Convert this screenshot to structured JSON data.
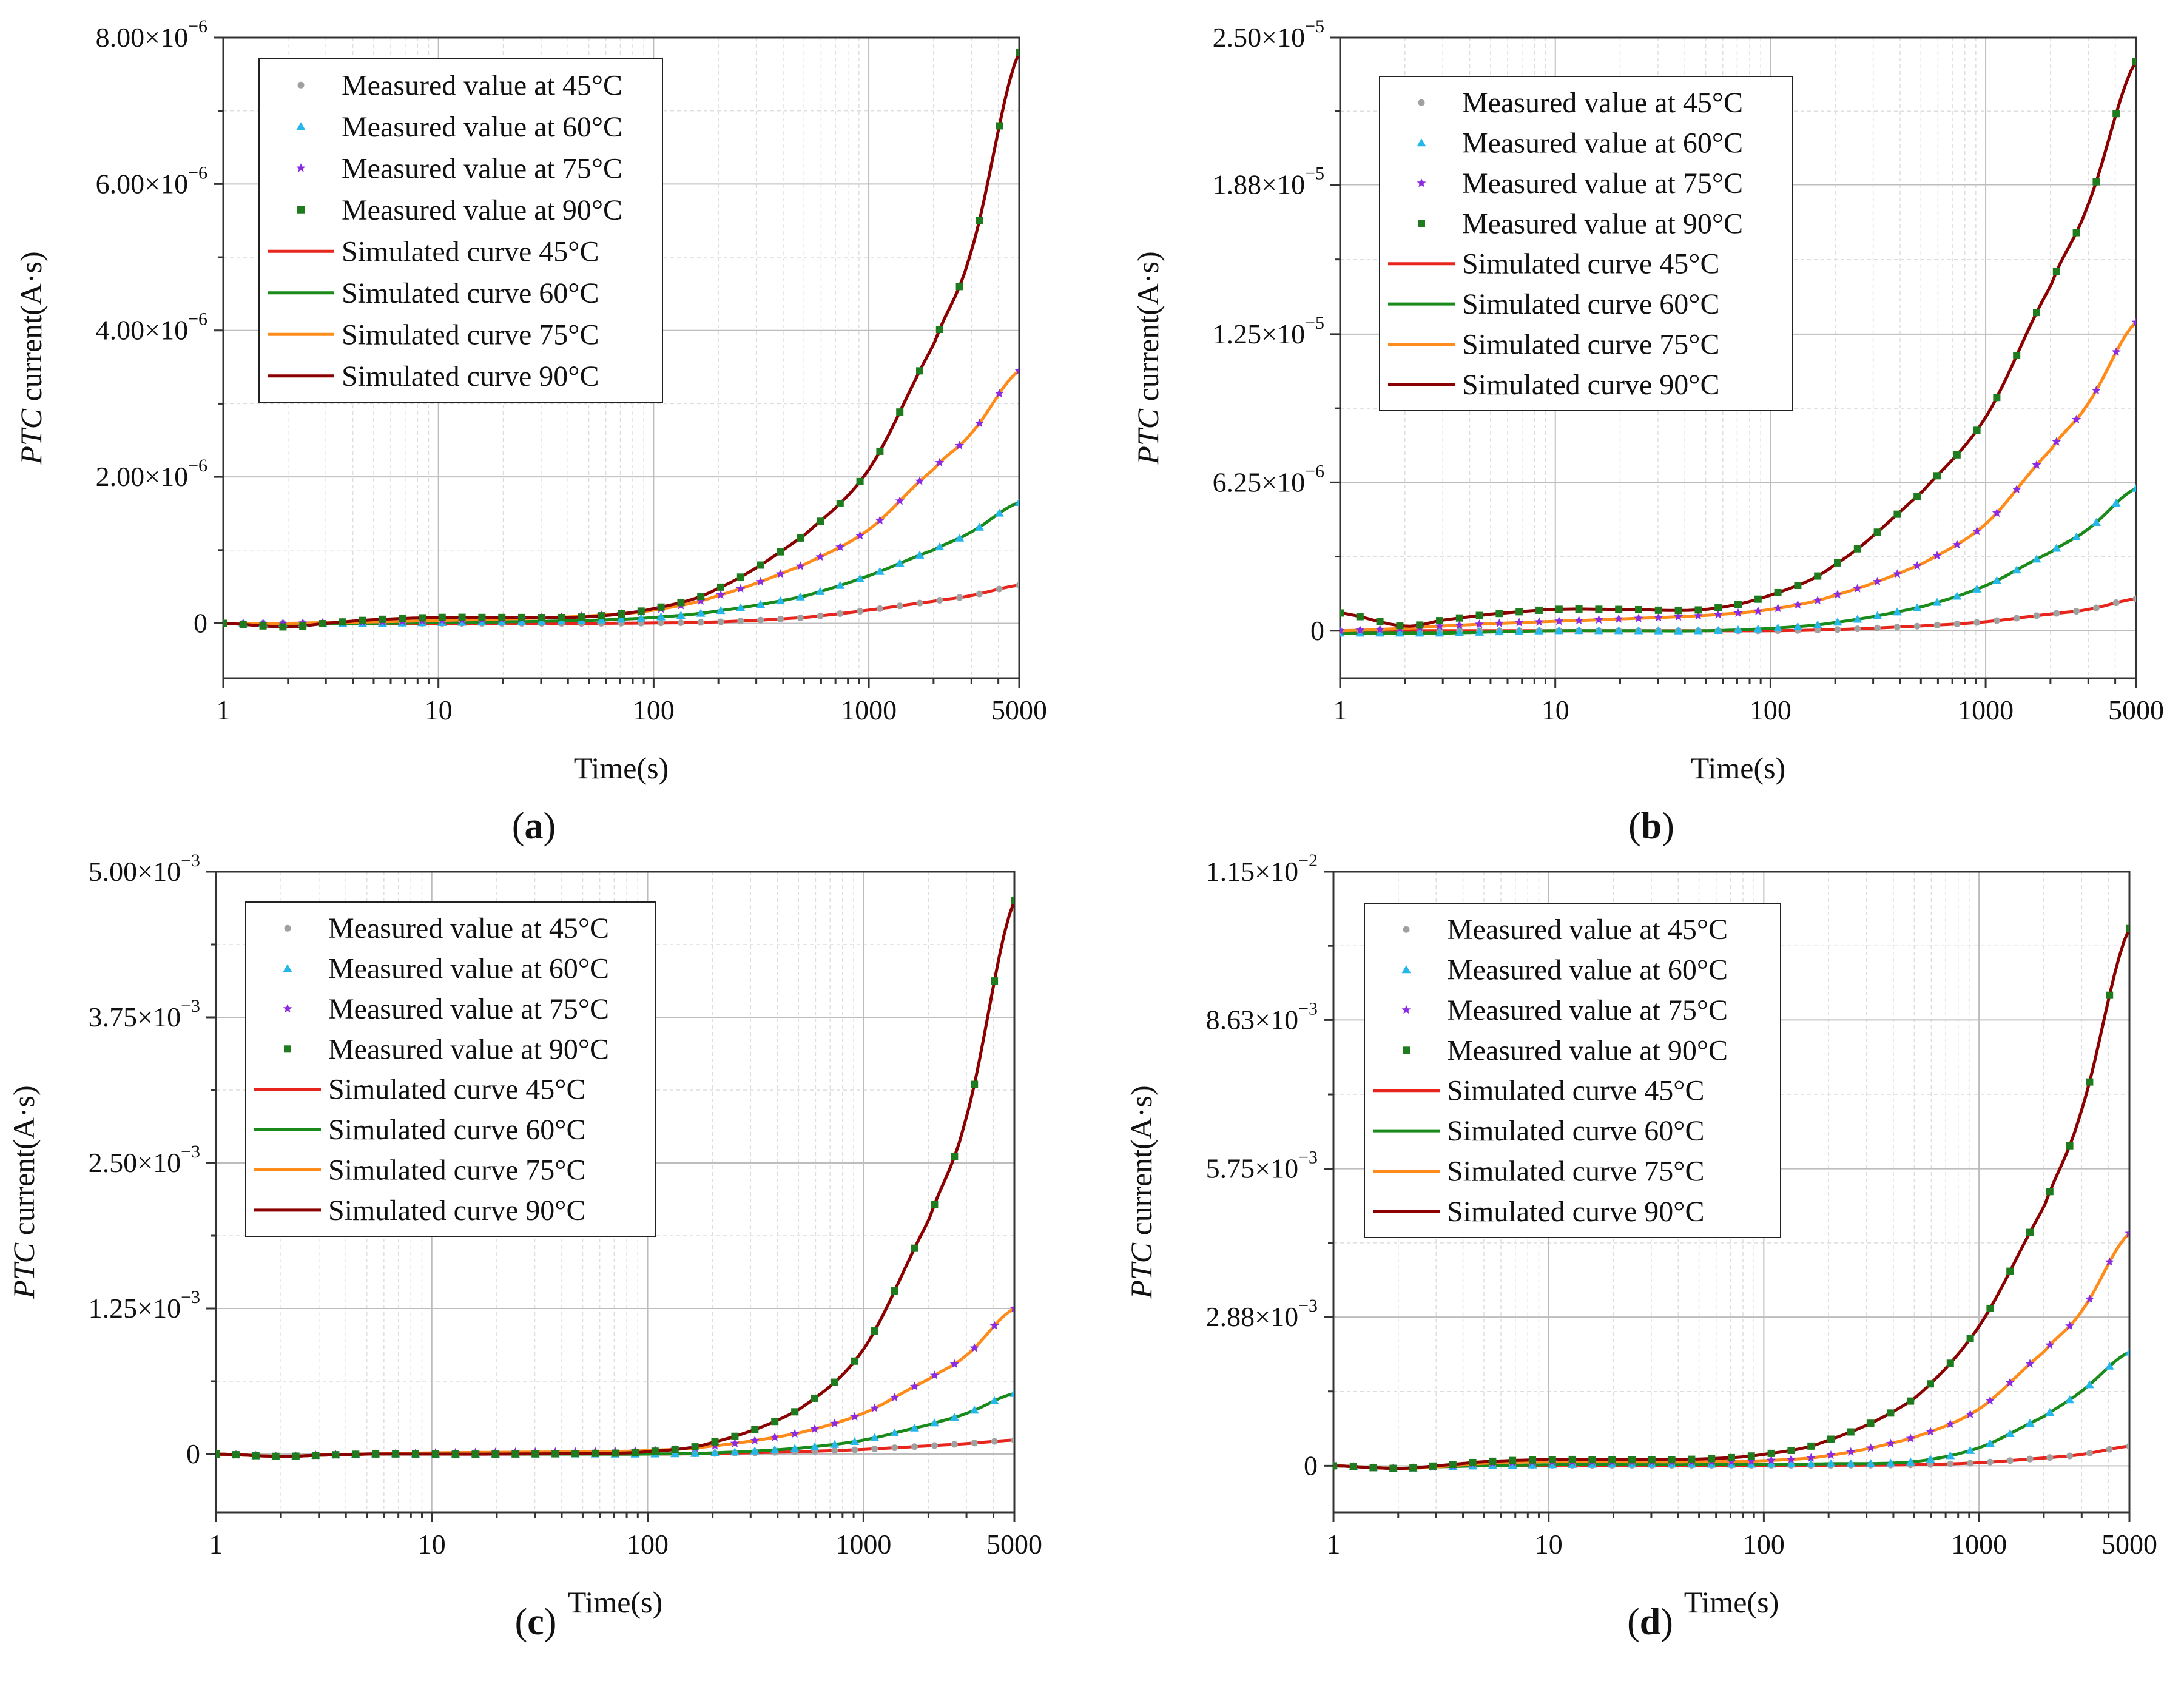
{
  "chart_data": [
    {
      "panel_label": "a",
      "type": "line",
      "xscale": "log",
      "xlim": [
        1,
        5000
      ],
      "ylim": [
        -7.5e-07,
        8e-06
      ],
      "xticks": [
        "1",
        "10",
        "100",
        "1000",
        "5000"
      ],
      "yticks": [
        {
          "value": 0,
          "mant": "0",
          "exp": ""
        },
        {
          "value": 2e-06,
          "mant": "2.00×10",
          "exp": "−6"
        },
        {
          "value": 4e-06,
          "mant": "4.00×10",
          "exp": "−6"
        },
        {
          "value": 6e-06,
          "mant": "6.00×10",
          "exp": "−6"
        },
        {
          "value": 8e-06,
          "mant": "8.00×10",
          "exp": "−6"
        }
      ],
      "xlabel": "Time(s)",
      "ylabel_italic": "PTC",
      "ylabel_rest": " current(A·s)",
      "grid": true,
      "legend_position": "top-left",
      "x": [
        1,
        2,
        3,
        5,
        10,
        20,
        50,
        100,
        200,
        500,
        1000,
        2000,
        3000,
        5000
      ],
      "series": [
        {
          "name": "45°C",
          "values": [
            0,
            0,
            0,
            0,
            0,
            0,
            0,
            5e-09,
            2e-08,
            8e-08,
            1.8e-07,
            3e-07,
            3.8e-07,
            5.2e-07
          ]
        },
        {
          "name": "60°C",
          "values": [
            0,
            0,
            0,
            0,
            1e-08,
            2e-08,
            4e-08,
            8e-08,
            1.7e-07,
            3.7e-07,
            6.5e-07,
            1e-06,
            1.25e-06,
            1.65e-06
          ]
        },
        {
          "name": "75°C",
          "values": [
            0,
            0,
            1e-08,
            2e-08,
            4e-08,
            6e-08,
            1e-07,
            1.8e-07,
            3.8e-07,
            8e-07,
            1.28e-06,
            2.1e-06,
            2.6e-06,
            3.45e-06
          ]
        },
        {
          "name": "90°C",
          "values": [
            0,
            -5e-08,
            0,
            5e-08,
            8e-08,
            8e-08,
            9e-08,
            2e-07,
            4.8e-07,
            1.2e-06,
            2.1e-06,
            3.8e-06,
            5.1e-06,
            7.8e-06
          ]
        }
      ]
    },
    {
      "panel_label": "b",
      "type": "line",
      "xscale": "log",
      "xlim": [
        1,
        5000
      ],
      "ylim": [
        -2e-06,
        2.5e-05
      ],
      "xticks": [
        "1",
        "10",
        "100",
        "1000",
        "5000"
      ],
      "yticks": [
        {
          "value": 0,
          "mant": "0",
          "exp": ""
        },
        {
          "value": 6.25e-06,
          "mant": "6.25×10",
          "exp": "−6"
        },
        {
          "value": 1.25e-05,
          "mant": "1.25×10",
          "exp": "−5"
        },
        {
          "value": 1.88e-05,
          "mant": "1.88×10",
          "exp": "−5"
        },
        {
          "value": 2.5e-05,
          "mant": "2.50×10",
          "exp": "−5"
        }
      ],
      "xlabel": "Time(s)",
      "ylabel_italic": "PTC",
      "ylabel_rest": " current(A·s)",
      "grid": true,
      "legend_position": "top-left",
      "x": [
        1,
        2,
        3,
        5,
        10,
        20,
        50,
        100,
        200,
        500,
        1000,
        2000,
        3000,
        5000
      ],
      "series": [
        {
          "name": "45°C",
          "values": [
            0,
            0,
            0,
            0,
            0,
            0,
            0,
            0,
            5e-08,
            2e-07,
            3.8e-07,
            7e-07,
            9e-07,
            1.35e-06
          ]
        },
        {
          "name": "60°C",
          "values": [
            -1e-07,
            -1e-07,
            -1e-07,
            -5e-08,
            0,
            0,
            0,
            1e-07,
            3.5e-07,
            1e-06,
            1.9e-06,
            3.3e-06,
            4.3e-06,
            6e-06
          ]
        },
        {
          "name": "75°C",
          "values": [
            0,
            1e-07,
            2e-07,
            3e-07,
            4e-07,
            5e-07,
            6.5e-07,
            9e-07,
            1.5e-06,
            2.8e-06,
            4.5e-06,
            7.6e-06,
            9.6e-06,
            1.3e-05
          ]
        },
        {
          "name": "90°C",
          "values": [
            7.5e-07,
            2e-07,
            4.5e-07,
            7e-07,
            9e-07,
            9e-07,
            9e-07,
            1.5e-06,
            2.8e-06,
            5.8e-06,
            9e-06,
            1.45e-05,
            1.8e-05,
            2.4e-05
          ]
        }
      ]
    },
    {
      "panel_label": "c",
      "type": "line",
      "xscale": "log",
      "xlim": [
        1,
        5000
      ],
      "ylim": [
        -0.0005,
        0.005
      ],
      "xticks": [
        "1",
        "10",
        "100",
        "1000",
        "5000"
      ],
      "yticks": [
        {
          "value": 0,
          "mant": "0",
          "exp": ""
        },
        {
          "value": 0.00125,
          "mant": "1.25×10",
          "exp": "−3"
        },
        {
          "value": 0.0025,
          "mant": "2.50×10",
          "exp": "−3"
        },
        {
          "value": 0.00375,
          "mant": "3.75×10",
          "exp": "−3"
        },
        {
          "value": 0.005,
          "mant": "5.00×10",
          "exp": "−3"
        }
      ],
      "xlabel": "Time(s)",
      "ylabel_italic": "PTC",
      "ylabel_rest": " current(A·s)",
      "grid": true,
      "legend_position": "top-left",
      "x": [
        1,
        2,
        3,
        5,
        10,
        20,
        50,
        100,
        200,
        500,
        1000,
        2000,
        3000,
        5000
      ],
      "series": [
        {
          "name": "45°C",
          "values": [
            0,
            -2e-05,
            -1e-05,
            0,
            0,
            0,
            0,
            0,
            5e-06,
            2e-05,
            4e-05,
            7e-05,
            9e-05,
            0.00012
          ]
        },
        {
          "name": "60°C",
          "values": [
            0,
            -2e-05,
            -1e-05,
            0,
            0,
            0,
            0,
            0,
            1e-05,
            5e-05,
            0.00012,
            0.00025,
            0.00035,
            0.00052
          ]
        },
        {
          "name": "75°C",
          "values": [
            0,
            -2e-05,
            -1e-05,
            0,
            1e-05,
            1.5e-05,
            2e-05,
            3e-05,
            7e-05,
            0.00018,
            0.00035,
            0.00064,
            0.00085,
            0.00125
          ]
        },
        {
          "name": "90°C",
          "values": [
            0,
            -2e-05,
            -1e-05,
            0,
            0,
            0,
            5e-06,
            2e-05,
            0.0001,
            0.00038,
            0.0009,
            0.002,
            0.0029,
            0.00475
          ]
        }
      ]
    },
    {
      "panel_label": "d",
      "type": "line",
      "xscale": "log",
      "xlim": [
        1,
        5000
      ],
      "ylim": [
        -0.0009,
        0.0115
      ],
      "xticks": [
        "1",
        "10",
        "100",
        "1000",
        "5000"
      ],
      "yticks": [
        {
          "value": 0,
          "mant": "0",
          "exp": ""
        },
        {
          "value": 0.00288,
          "mant": "2.88×10",
          "exp": "−3"
        },
        {
          "value": 0.00575,
          "mant": "5.75×10",
          "exp": "−3"
        },
        {
          "value": 0.00863,
          "mant": "8.63×10",
          "exp": "−3"
        },
        {
          "value": 0.0115,
          "mant": "1.15×10",
          "exp": "−2"
        }
      ],
      "xlabel": "Time(s)",
      "ylabel_italic": "PTC",
      "ylabel_rest": " current(A·s)",
      "grid": true,
      "legend_position": "top-left",
      "x": [
        1,
        2,
        3,
        5,
        10,
        20,
        50,
        100,
        200,
        500,
        1000,
        2000,
        3000,
        5000
      ],
      "series": [
        {
          "name": "45°C",
          "values": [
            0,
            -5e-05,
            -2e-05,
            0,
            1e-05,
            1e-05,
            1e-05,
            1e-05,
            1e-05,
            2e-05,
            6e-05,
            0.00015,
            0.00022,
            0.00038
          ]
        },
        {
          "name": "60°C",
          "values": [
            0,
            -5e-05,
            -2e-05,
            0,
            2e-05,
            3e-05,
            3e-05,
            3e-05,
            4e-05,
            8e-05,
            0.00035,
            0.00095,
            0.00145,
            0.0022
          ]
        },
        {
          "name": "75°C",
          "values": [
            0,
            -5e-05,
            -2e-05,
            5e-05,
            8e-05,
            8e-05,
            8e-05,
            0.0001,
            0.0002,
            0.00055,
            0.0011,
            0.0022,
            0.003,
            0.0045
          ]
        },
        {
          "name": "90°C",
          "values": [
            0,
            -5e-05,
            0,
            8e-05,
            0.00012,
            0.00012,
            0.00013,
            0.00022,
            0.0005,
            0.0013,
            0.0027,
            0.005,
            0.0069,
            0.0104
          ]
        }
      ]
    }
  ],
  "legend": {
    "measured": [
      {
        "label": "Measured value at 45°C",
        "marker": "circle",
        "color": "#a0a0a0"
      },
      {
        "label": "Measured value at 60°C",
        "marker": "triangle",
        "color": "#26b7ea"
      },
      {
        "label": "Measured value at 75°C",
        "marker": "star",
        "color": "#8a2be2"
      },
      {
        "label": "Measured value at 90°C",
        "marker": "square",
        "color": "#1e7b1e"
      }
    ],
    "simulated": [
      {
        "label": "Simulated curve 45°C",
        "color": "#e8251c"
      },
      {
        "label": "Simulated curve 60°C",
        "color": "#1a8a1a"
      },
      {
        "label": "Simulated curve 75°C",
        "color": "#ff8c1a"
      },
      {
        "label": "Simulated curve 90°C",
        "color": "#8b0000"
      }
    ]
  }
}
